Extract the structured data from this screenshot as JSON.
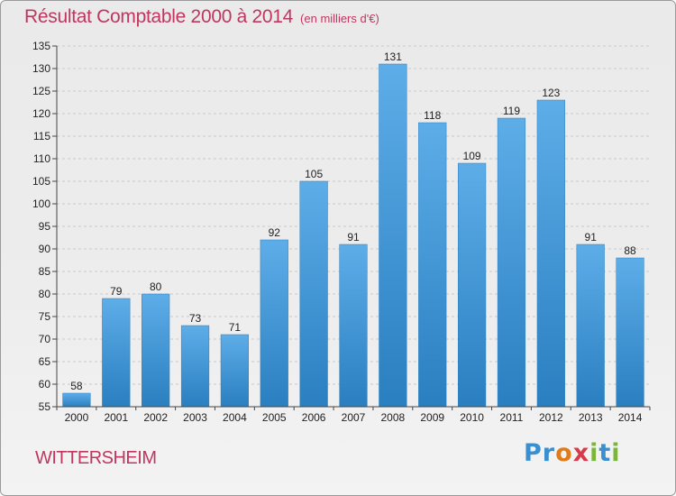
{
  "header": {
    "title": "Résultat Comptable 2000 à 2014",
    "unit": "(en milliers d'€)"
  },
  "footer": {
    "commune": "WITTERSHEIM",
    "logo_letters": [
      {
        "char": "P",
        "color": "#3a8fd0"
      },
      {
        "char": "r",
        "color": "#3a8fd0"
      },
      {
        "char": "o",
        "color": "#e07b1a"
      },
      {
        "char": "x",
        "color": "#d83a4a"
      },
      {
        "char": "i",
        "color": "#7bb63a"
      },
      {
        "char": "t",
        "color": "#3a8fd0"
      },
      {
        "char": "i",
        "color": "#7bb63a"
      }
    ]
  },
  "chart_data": {
    "type": "bar",
    "categories": [
      "2000",
      "2001",
      "2002",
      "2003",
      "2004",
      "2005",
      "2006",
      "2007",
      "2008",
      "2009",
      "2010",
      "2011",
      "2012",
      "2013",
      "2014"
    ],
    "values": [
      58,
      79,
      80,
      73,
      71,
      92,
      105,
      91,
      131,
      118,
      109,
      119,
      123,
      91,
      88
    ],
    "ylim": [
      55,
      135
    ],
    "yticks": [
      55,
      60,
      65,
      70,
      75,
      80,
      85,
      90,
      95,
      100,
      105,
      110,
      115,
      120,
      125,
      130,
      135
    ],
    "grid": true,
    "colors": {
      "bar_light": "#5dade8",
      "bar_dark": "#2a7fc0",
      "grid": "#c9c9c9",
      "title": "#c0365f"
    }
  }
}
